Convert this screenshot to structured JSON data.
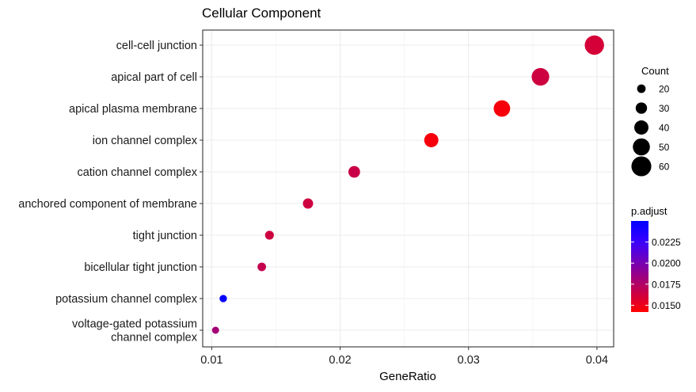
{
  "chart_data": {
    "type": "scatter",
    "title": "Cellular Component",
    "xlabel": "GeneRatio",
    "ylabel": "",
    "xlim": [
      0.0093,
      0.0413
    ],
    "xticks": [
      0.01,
      0.02,
      0.03,
      0.04
    ],
    "xtick_labels": [
      "0.01",
      "0.02",
      "0.03",
      "0.04"
    ],
    "grid": true,
    "categories": [
      "cell-cell junction",
      "apical part of cell",
      "apical plasma membrane",
      "ion channel complex",
      "cation channel complex",
      "anchored component of membrane",
      "tight junction",
      "bicellular tight junction",
      "potassium channel complex",
      "voltage-gated potassium\nchannel complex"
    ],
    "points": [
      {
        "term": "cell-cell junction",
        "gene_ratio": 0.0398,
        "count": 58,
        "p_adjust": 0.016
      },
      {
        "term": "apical part of cell",
        "gene_ratio": 0.0356,
        "count": 52,
        "p_adjust": 0.0163
      },
      {
        "term": "apical plasma membrane",
        "gene_ratio": 0.0326,
        "count": 48,
        "p_adjust": 0.0146
      },
      {
        "term": "ion channel complex",
        "gene_ratio": 0.0271,
        "count": 40,
        "p_adjust": 0.0146
      },
      {
        "term": "cation channel complex",
        "gene_ratio": 0.0211,
        "count": 31,
        "p_adjust": 0.0165
      },
      {
        "term": "anchored component of membrane",
        "gene_ratio": 0.0175,
        "count": 26,
        "p_adjust": 0.0163
      },
      {
        "term": "tight junction",
        "gene_ratio": 0.0145,
        "count": 21,
        "p_adjust": 0.0163
      },
      {
        "term": "bicellular tight junction",
        "gene_ratio": 0.0139,
        "count": 20,
        "p_adjust": 0.0167
      },
      {
        "term": "potassium channel complex",
        "gene_ratio": 0.0109,
        "count": 16,
        "p_adjust": 0.0248
      },
      {
        "term": "voltage-gated potassium\nchannel complex",
        "gene_ratio": 0.0103,
        "count": 15,
        "p_adjust": 0.018
      }
    ],
    "legend_size": {
      "title": "Count",
      "values": [
        20,
        30,
        40,
        50,
        60
      ],
      "labels": [
        "20",
        "30",
        "40",
        "50",
        "60"
      ],
      "position": "right"
    },
    "legend_color": {
      "title": "p.adjust",
      "min": 0.0142,
      "max": 0.025,
      "ticks": [
        0.015,
        0.0175,
        0.02,
        0.0225
      ],
      "tick_labels": [
        "0.0150",
        "0.0175",
        "0.0200",
        "0.0225"
      ],
      "low_color": "#FF0000",
      "high_color": "#0000FF",
      "position": "right"
    },
    "colors": {
      "panel_border": "#333333",
      "grid_major": "#EBEBEB",
      "grid_minor": "#F3F3F3",
      "text": "#000000",
      "axis_text": "#1A1A1A"
    }
  }
}
